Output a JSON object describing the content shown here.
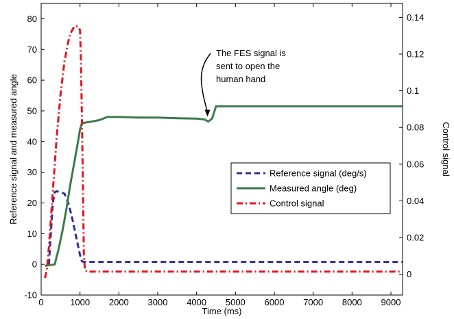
{
  "chart_data": {
    "type": "line",
    "title": "",
    "xlabel": "Time (ms)",
    "ylabel_left": "Reference signal and measured angle",
    "ylabel_right": "Control signal",
    "xlim": [
      0,
      9300
    ],
    "ylim_left": [
      -10,
      85
    ],
    "ylim_right": [
      -0.0113,
      0.1476
    ],
    "x_ticks": [
      0,
      1000,
      2000,
      3000,
      4000,
      5000,
      6000,
      7000,
      8000,
      9000
    ],
    "y_ticks_left": [
      -10,
      0,
      10,
      20,
      30,
      40,
      50,
      60,
      70,
      80
    ],
    "y_ticks_right": [
      0,
      0.02,
      0.04,
      0.06,
      0.08,
      0.1,
      0.12,
      0.14
    ],
    "grid": false,
    "legend_position": "center-right",
    "annotation": {
      "lines": [
        "The FES signal is",
        "sent to open the",
        "human hand"
      ],
      "target": [
        4280,
        47
      ]
    },
    "series": [
      {
        "name": "Reference signal (deg/s)",
        "axis": "left",
        "color": "#2b2b9a",
        "style": "dashed",
        "x": [
          200,
          300,
          350,
          400,
          500,
          600,
          700,
          800,
          900,
          1000,
          1050,
          1100,
          1500,
          2000,
          3000,
          4000,
          5000,
          6000,
          7000,
          8000,
          9000,
          9300
        ],
        "y": [
          0,
          20,
          23.5,
          23.8,
          23.5,
          23,
          20,
          15,
          9,
          3,
          1,
          0.8,
          0.8,
          0.8,
          0.8,
          0.8,
          0.8,
          0.8,
          0.8,
          0.8,
          0.8,
          0.8
        ]
      },
      {
        "name": "Measured angle (deg)",
        "axis": "left",
        "color": "#3c7a4a",
        "style": "solid",
        "x": [
          100,
          350,
          450,
          550,
          650,
          750,
          850,
          950,
          1000,
          1050,
          1150,
          1300,
          1500,
          1600,
          1700,
          1800,
          2000,
          2500,
          3000,
          3500,
          4000,
          4200,
          4300,
          4400,
          4500,
          5000,
          6000,
          7000,
          8000,
          9000,
          9300
        ],
        "y": [
          -0.5,
          0,
          5,
          11,
          18,
          26,
          33,
          40,
          44,
          46,
          46.2,
          46.5,
          47,
          47.5,
          48,
          48,
          48,
          47.8,
          47.8,
          47.6,
          47.5,
          47.2,
          46.5,
          47.5,
          51.5,
          51.5,
          51.5,
          51.5,
          51.5,
          51.5,
          51.5
        ]
      },
      {
        "name": "Control signal",
        "axis": "right",
        "color": "#e8131c",
        "style": "dashdot",
        "x": [
          100,
          150,
          200,
          300,
          400,
          500,
          600,
          700,
          750,
          800,
          850,
          900,
          950,
          1000,
          1020,
          1050,
          1080,
          1100,
          1130,
          1200,
          2000,
          3000,
          4000,
          5000,
          6000,
          7000,
          8000,
          9000,
          9300
        ],
        "y": [
          -0.002,
          0.003,
          0.015,
          0.045,
          0.075,
          0.098,
          0.116,
          0.127,
          0.131,
          0.133,
          0.135,
          0.1352,
          0.135,
          0.133,
          0.12,
          0.085,
          0.04,
          0.01,
          0.002,
          0.0015,
          0.0015,
          0.0015,
          0.0015,
          0.0015,
          0.0015,
          0.0015,
          0.0015,
          0.0015,
          0.0015
        ]
      }
    ]
  }
}
